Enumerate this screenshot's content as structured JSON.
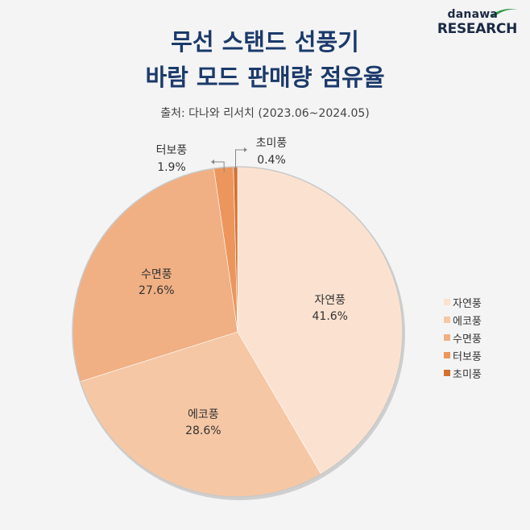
{
  "brand": {
    "top": "danawa",
    "bottom_a": "RE",
    "bottom_b": "SEARCH"
  },
  "title_line1": "무선 스탠드 선풍기",
  "title_line2": "바람 모드 판매량 점유율",
  "source": "출처: 다나와 리서치 (2023.06~2024.05)",
  "colors": {
    "swoosh_green": "#2e9a4a",
    "title": "#1b3a6b"
  },
  "chart_data": {
    "type": "pie",
    "title": "무선 스탠드 선풍기 바람 모드 판매량 점유율",
    "categories": [
      "자연풍",
      "에코풍",
      "수면풍",
      "터보풍",
      "초미풍"
    ],
    "values": [
      41.6,
      28.6,
      27.6,
      1.9,
      0.4
    ],
    "value_labels": [
      "41.6%",
      "28.6%",
      "27.6%",
      "1.9%",
      "0.4%"
    ],
    "colors": [
      "#fbe2d0",
      "#f6c7a5",
      "#f0b084",
      "#ec965d",
      "#d6702f"
    ],
    "start": "12 o'clock",
    "direction": "clockwise",
    "legend": "right"
  }
}
